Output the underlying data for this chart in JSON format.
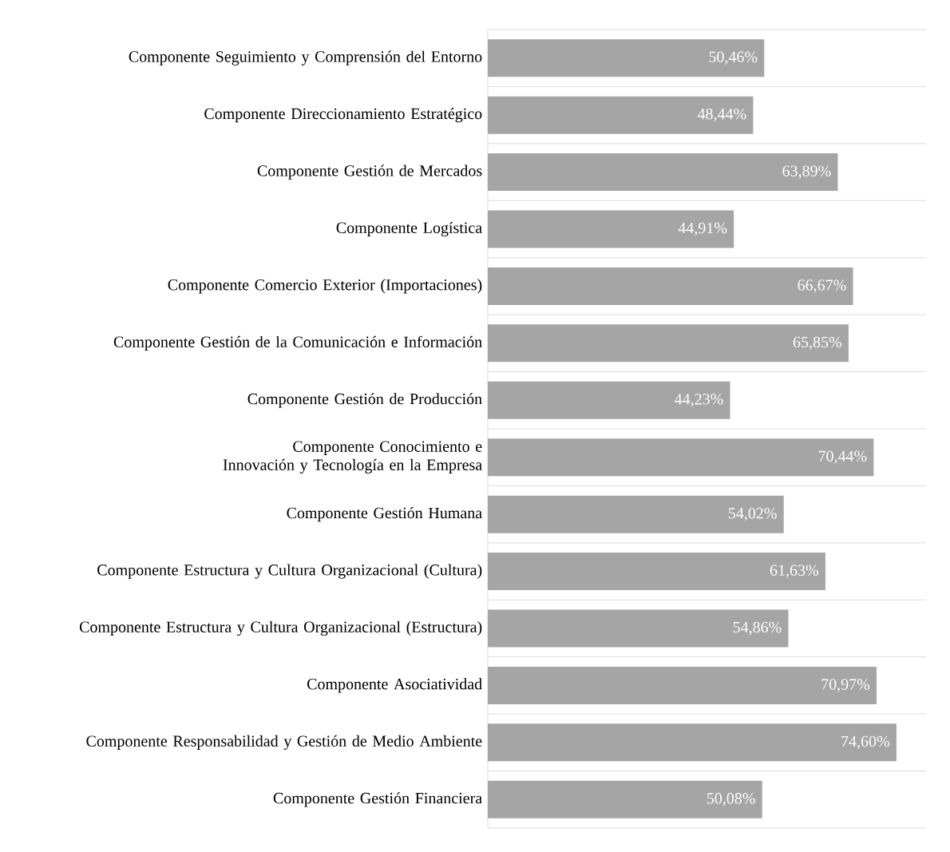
{
  "chart_data": {
    "type": "bar",
    "orientation": "horizontal",
    "categories": [
      "Componente Seguimiento y Comprensión del Entorno",
      "Componente Direccionamiento Estratégico",
      "Componente Gestión de Mercados",
      "Componente Logística",
      "Componente Comercio Exterior (Importaciones)",
      "Componente Gestión de la Comunicación e Información",
      "Componente Gestión de Producción",
      "Componente Conocimiento e Innovación y Tecnología en la Empresa",
      "Componente Gestión Humana",
      "Componente Estructura y Cultura Organizacional (Cultura)",
      "Componente Estructura y Cultura Organizacional (Estructura)",
      "Componente Asociatividad",
      "Componente Responsabilidad y Gestión de Medio Ambiente",
      "Componente Gestión Financiera"
    ],
    "values": [
      50.46,
      48.44,
      63.89,
      44.91,
      66.67,
      65.85,
      44.23,
      70.44,
      54.02,
      61.63,
      54.86,
      70.97,
      74.6,
      50.08
    ],
    "value_labels": [
      "50,46%",
      "48,44%",
      "63,89%",
      "44,91%",
      "66,67%",
      "65,85%",
      "44,23%",
      "70,44%",
      "54,02%",
      "61,63%",
      "54,86%",
      "70,97%",
      "74,60%",
      "50,08%"
    ],
    "color": "#a5a5a5",
    "xlim": [
      0,
      80
    ],
    "grid": "y"
  }
}
